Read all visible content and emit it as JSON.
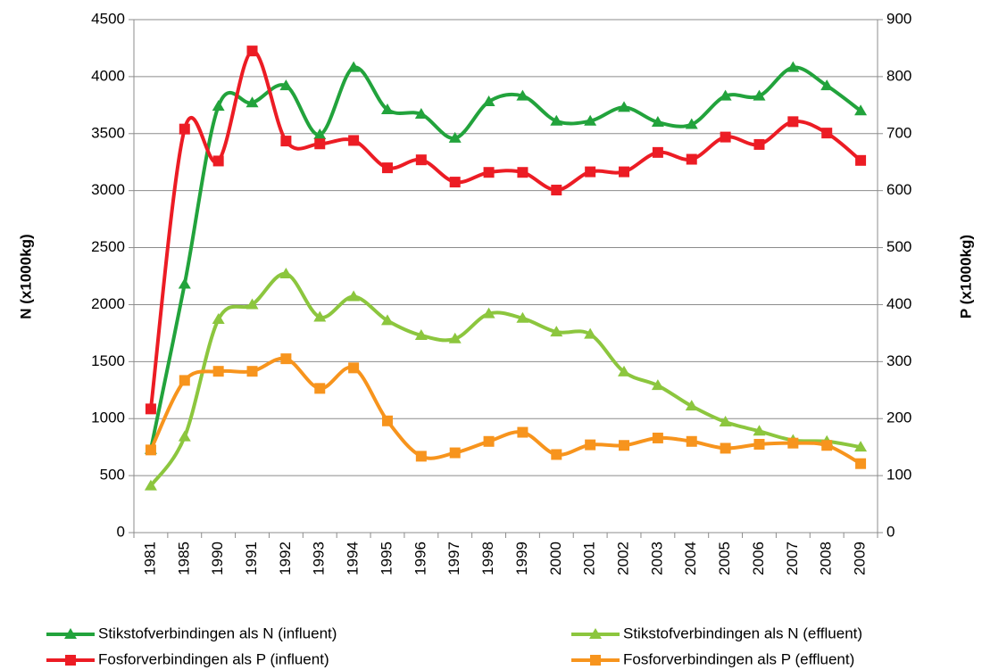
{
  "chart_data": {
    "type": "line",
    "categories": [
      "1981",
      "1985",
      "1990",
      "1991",
      "1992",
      "1993",
      "1994",
      "1995",
      "1996",
      "1997",
      "1998",
      "1999",
      "2000",
      "2001",
      "2002",
      "2003",
      "2004",
      "2005",
      "2006",
      "2007",
      "2008",
      "2009"
    ],
    "y_label": "N (x1000kg)",
    "y2_label": "P (x1000kg)",
    "ylim": [
      0,
      4500
    ],
    "yticks": [
      0,
      500,
      1000,
      1500,
      2000,
      2500,
      3000,
      3500,
      4000,
      4500
    ],
    "y2lim": [
      0,
      900
    ],
    "y2ticks": [
      0,
      100,
      200,
      300,
      400,
      500,
      600,
      700,
      800,
      900
    ],
    "grid": true,
    "legend": "bottom",
    "smooth": true,
    "series": [
      {
        "name": "Stikstofverbindingen als N (influent)",
        "color": "#22a33c",
        "marker": "triangle",
        "axis": "y",
        "values": [
          730,
          2180,
          3740,
          3770,
          3920,
          3490,
          4080,
          3710,
          3670,
          3460,
          3780,
          3830,
          3610,
          3610,
          3730,
          3600,
          3580,
          3830,
          3830,
          4080,
          3920,
          3700
        ]
      },
      {
        "name": "Stikstofverbindingen als N (effluent)",
        "color": "#8cc63e",
        "marker": "triangle",
        "axis": "y",
        "values": [
          410,
          840,
          1870,
          2000,
          2270,
          1890,
          2070,
          1860,
          1730,
          1700,
          1920,
          1880,
          1760,
          1740,
          1410,
          1290,
          1110,
          970,
          890,
          810,
          800,
          750
        ]
      },
      {
        "name": "Fosforverbindingen als P (influent)",
        "color": "#ec1c24",
        "marker": "square",
        "axis": "y2",
        "values": [
          217,
          708,
          652,
          845,
          687,
          682,
          688,
          640,
          654,
          615,
          632,
          632,
          601,
          633,
          633,
          667,
          655,
          694,
          681,
          721,
          701,
          653
        ]
      },
      {
        "name": "Fosforverbindingen als P (effluent)",
        "color": "#f7941d",
        "marker": "square",
        "axis": "y2",
        "values": [
          145,
          267,
          283,
          283,
          305,
          253,
          289,
          196,
          134,
          140,
          160,
          176,
          137,
          154,
          153,
          166,
          160,
          148,
          155,
          157,
          153,
          121
        ]
      }
    ]
  }
}
